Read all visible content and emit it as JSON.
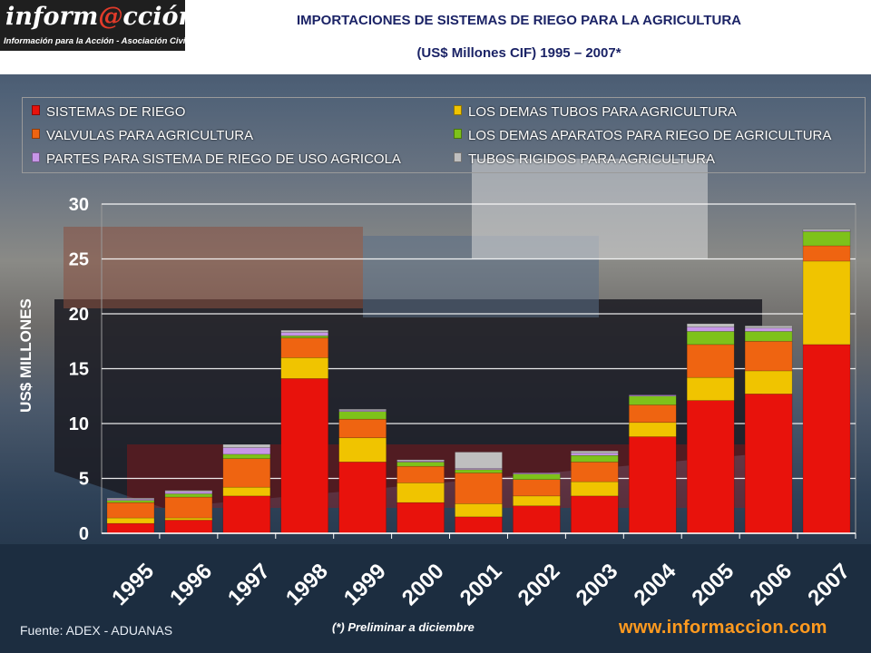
{
  "header": {
    "logo_word_a": "inform",
    "logo_at": "@",
    "logo_word_b": "cción",
    "logo_tagline": "Información para la Acción - Asociación Civil",
    "title_line1": "IMPORTACIONES DE SISTEMAS DE RIEGO PARA LA AGRICULTURA",
    "title_line2": "(US$ Millones CIF) 1995 – 2007*"
  },
  "footer": {
    "source": "Fuente: ADEX - ADUANAS",
    "note": "(*) Preliminar a diciembre",
    "url": "www.informaccion.com"
  },
  "chart_data": {
    "type": "bar",
    "stacked": true,
    "ylabel": "US$ MILLONES",
    "ylim": [
      0,
      30
    ],
    "yticks": [
      0,
      5,
      10,
      15,
      20,
      25,
      30
    ],
    "grid": true,
    "legend_position": "top",
    "categories": [
      "1995",
      "1996",
      "1997",
      "1998",
      "1999",
      "2000",
      "2001",
      "2002",
      "2003",
      "2004",
      "2005",
      "2006",
      "2007"
    ],
    "series": [
      {
        "name": "SISTEMAS DE RIEGO",
        "color": "#e8120c",
        "values": [
          0.9,
          1.2,
          3.4,
          14.1,
          6.5,
          2.8,
          1.5,
          2.5,
          3.4,
          8.8,
          12.1,
          12.7,
          17.2
        ]
      },
      {
        "name": "LOS DEMAS TUBOS PARA AGRICULTURA",
        "color": "#f0c400",
        "values": [
          0.5,
          0.2,
          0.8,
          1.9,
          2.2,
          1.8,
          1.2,
          0.9,
          1.3,
          1.3,
          2.1,
          2.1,
          7.6
        ]
      },
      {
        "name": "VALVULAS PARA AGRICULTURA",
        "color": "#ef6411",
        "values": [
          1.4,
          1.9,
          2.6,
          1.8,
          1.7,
          1.5,
          2.8,
          1.5,
          1.8,
          1.6,
          3.0,
          2.7,
          1.4
        ]
      },
      {
        "name": "LOS DEMAS APARATOS PARA RIEGO DE AGRICULTURA",
        "color": "#7ec21a",
        "values": [
          0.2,
          0.3,
          0.4,
          0.2,
          0.7,
          0.4,
          0.3,
          0.5,
          0.6,
          0.8,
          1.2,
          0.9,
          1.3
        ]
      },
      {
        "name": "PARTES PARA SISTEMA DE RIEGO DE USO AGRICOLA",
        "color": "#c796e8",
        "values": [
          0.1,
          0.2,
          0.6,
          0.3,
          0.1,
          0.1,
          0.1,
          0.1,
          0.2,
          0.1,
          0.4,
          0.3,
          0.1
        ]
      },
      {
        "name": "TUBOS RIGIDOS PARA AGRICULTURA",
        "color": "#bfbfbf",
        "values": [
          0.1,
          0.1,
          0.3,
          0.2,
          0.1,
          0.1,
          1.5,
          0.0,
          0.2,
          0.0,
          0.3,
          0.2,
          0.1
        ]
      }
    ]
  }
}
